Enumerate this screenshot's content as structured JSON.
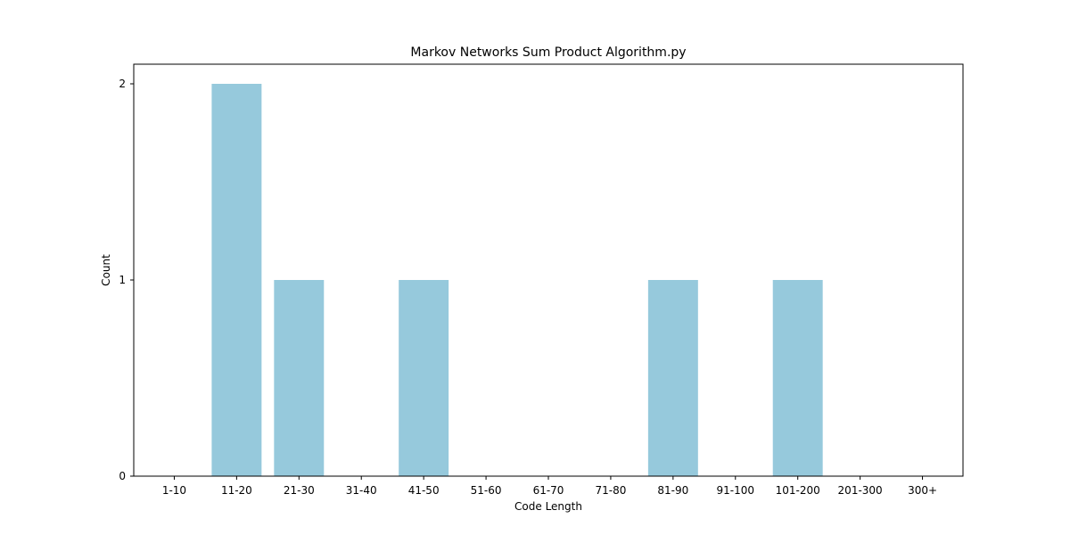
{
  "chart_data": {
    "type": "bar",
    "title": "Markov Networks Sum Product Algorithm.py",
    "xlabel": "Code Length",
    "ylabel": "Count",
    "categories": [
      "1-10",
      "11-20",
      "21-30",
      "31-40",
      "41-50",
      "51-60",
      "61-70",
      "71-80",
      "81-90",
      "91-100",
      "101-200",
      "201-300",
      "300+"
    ],
    "values": [
      0,
      2,
      1,
      0,
      1,
      0,
      0,
      0,
      1,
      0,
      1,
      0,
      0
    ],
    "ylim": [
      0,
      2.1
    ],
    "yticks": [
      0,
      1,
      2
    ],
    "bar_color": "#96c9dc",
    "grid": false,
    "legend": "none"
  }
}
